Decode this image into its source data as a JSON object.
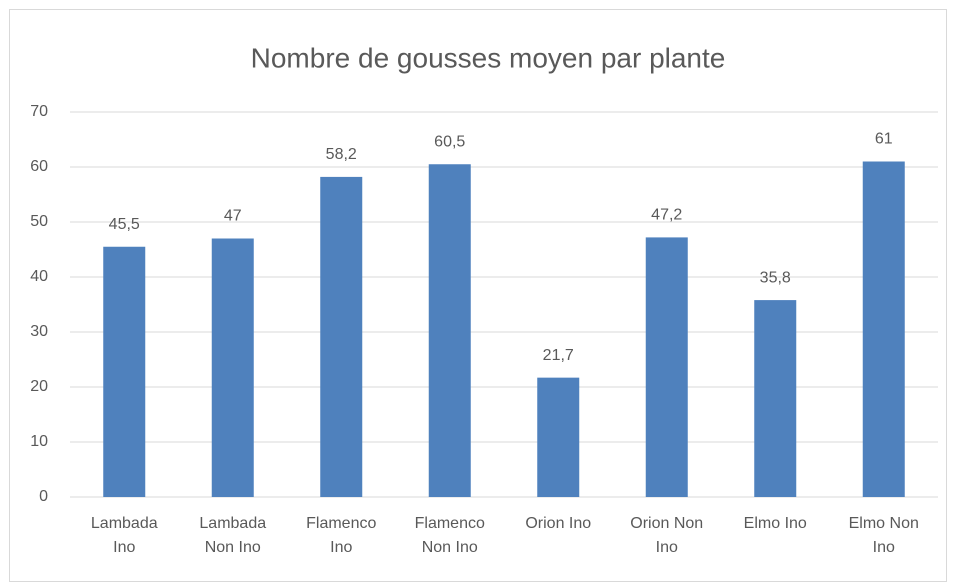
{
  "chart_data": {
    "type": "bar",
    "title": "Nombre de gousses moyen par plante",
    "categories": [
      "Lambada Ino",
      "Lambada Non Ino",
      "Flamenco Ino",
      "Flamenco Non Ino",
      "Orion Ino",
      "Orion Non Ino",
      "Elmo Ino",
      "Elmo Non Ino"
    ],
    "values": [
      45.5,
      47,
      58.2,
      60.5,
      21.7,
      47.2,
      35.8,
      61
    ],
    "value_labels": [
      "45,5",
      "47",
      "58,2",
      "60,5",
      "21,7",
      "47,2",
      "35,8",
      "61"
    ],
    "color": "#4f81bd",
    "ylim": [
      0,
      70
    ],
    "yticks": [
      0,
      10,
      20,
      30,
      40,
      50,
      60,
      70
    ],
    "grid": true
  }
}
